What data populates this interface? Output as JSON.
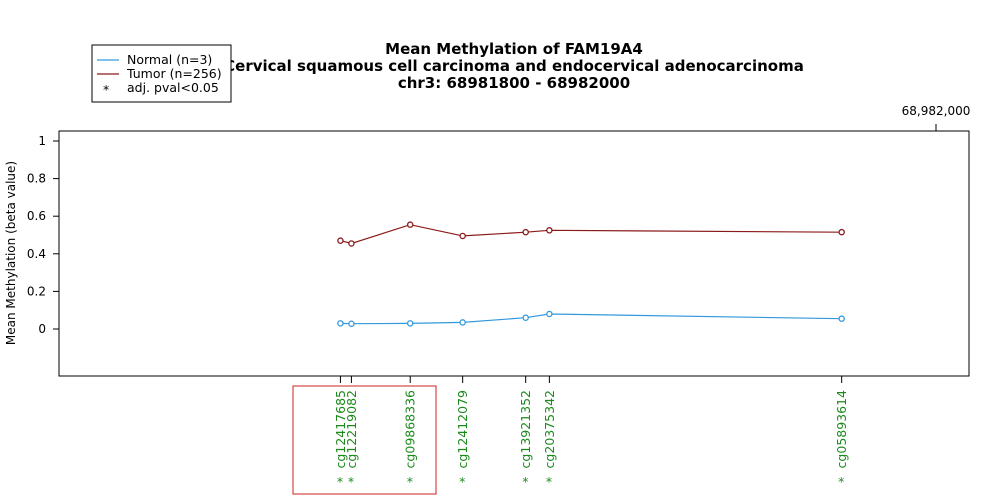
{
  "chart_data": {
    "type": "line",
    "title_lines": [
      "Mean Methylation of FAM19A4",
      "Cervical squamous cell carcinoma and endocervical adenocarcinoma",
      "chr3: 68981800 - 68982000"
    ],
    "ylabel": "Mean Methylation (beta value)",
    "xlabel": "",
    "ylim": [
      -0.25,
      1.05
    ],
    "yticks": [
      "0",
      "0.2",
      "0.4",
      "0.6",
      "0.8",
      "1"
    ],
    "ytick_values": [
      0,
      0.2,
      0.4,
      0.6,
      0.8,
      1
    ],
    "xlim": [
      68981800,
      68982000
    ],
    "xtick_label": "68,982,000",
    "xtick_value": 68982000,
    "series": [
      {
        "name": "Normal (n=3)",
        "color": "#3399dd",
        "values": [
          0.03,
          0.028,
          0.03,
          0.035,
          0.06,
          0.08,
          0.055
        ]
      },
      {
        "name": "Tumor (n=256)",
        "color": "#8b1a1a",
        "values": [
          0.47,
          0.455,
          0.555,
          0.495,
          0.515,
          0.525,
          0.515
        ]
      }
    ],
    "probes": [
      {
        "id": "cg12417685",
        "pos": 68981859.2,
        "significant": true
      },
      {
        "id": "cg12219082",
        "pos": 68981861.8,
        "significant": true
      },
      {
        "id": "cg09868336",
        "pos": 68981875.7,
        "significant": true
      },
      {
        "id": "cg12412079",
        "pos": 68981888.1,
        "significant": true
      },
      {
        "id": "cg13921352",
        "pos": 68981903.0,
        "significant": true
      },
      {
        "id": "cg20375342",
        "pos": 68981908.6,
        "significant": true
      },
      {
        "id": "cg05893614",
        "pos": 68981977.7,
        "significant": true
      }
    ],
    "legend": {
      "placement": "top-left",
      "entries": [
        "Normal (n=3)",
        "Tumor (n=256)",
        "adj. pval<0.05"
      ],
      "star_symbol": "*"
    },
    "grid": false,
    "highlight_box_color": "#cc2222"
  }
}
